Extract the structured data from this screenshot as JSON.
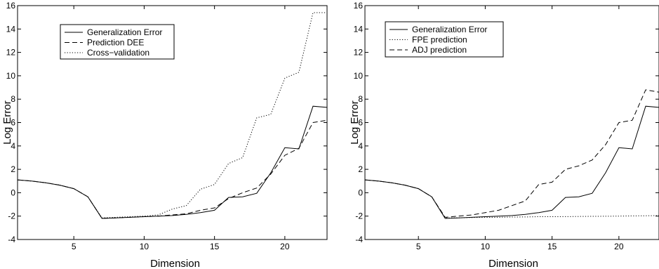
{
  "chart_data": [
    {
      "type": "line",
      "title": "",
      "xlabel": "Dimension",
      "ylabel": "Log Error",
      "xlim": [
        1,
        23
      ],
      "ylim": [
        -4,
        16
      ],
      "xticks": [
        5,
        10,
        15,
        20
      ],
      "yticks": [
        -4,
        -2,
        0,
        2,
        4,
        6,
        8,
        10,
        12,
        14,
        16
      ],
      "grid": false,
      "legend_position": "top-left",
      "x": [
        1,
        2,
        3,
        4,
        5,
        6,
        7,
        8,
        9,
        10,
        11,
        12,
        13,
        14,
        15,
        16,
        17,
        18,
        19,
        20,
        21,
        22,
        23
      ],
      "series": [
        {
          "name": "Generalization Error",
          "style": "solid",
          "values": [
            1.1,
            1.0,
            0.85,
            0.65,
            0.35,
            -0.35,
            -2.2,
            -2.15,
            -2.1,
            -2.05,
            -2.0,
            -1.95,
            -1.85,
            -1.7,
            -1.5,
            -0.4,
            -0.35,
            -0.05,
            1.7,
            3.85,
            3.75,
            7.4,
            7.3
          ]
        },
        {
          "name": "Prediction DEE",
          "style": "dashed",
          "values": [
            1.1,
            1.0,
            0.85,
            0.65,
            0.35,
            -0.35,
            -2.2,
            -2.15,
            -2.1,
            -2.05,
            -2.0,
            -1.9,
            -1.8,
            -1.5,
            -1.3,
            -0.5,
            0.0,
            0.4,
            1.6,
            3.2,
            3.8,
            6.0,
            6.2
          ]
        },
        {
          "name": "Cross−validation",
          "style": "dotted",
          "values": [
            1.1,
            1.0,
            0.85,
            0.65,
            0.35,
            -0.35,
            -2.15,
            -2.1,
            -2.05,
            -2.0,
            -1.9,
            -1.4,
            -1.1,
            0.3,
            0.7,
            2.5,
            3.0,
            6.4,
            6.7,
            9.8,
            10.3,
            15.4,
            15.4
          ]
        }
      ]
    },
    {
      "type": "line",
      "title": "",
      "xlabel": "Dimension",
      "ylabel": "Log Error",
      "xlim": [
        1,
        23
      ],
      "ylim": [
        -4,
        16
      ],
      "xticks": [
        5,
        10,
        15,
        20
      ],
      "yticks": [
        -4,
        -2,
        0,
        2,
        4,
        6,
        8,
        10,
        12,
        14,
        16
      ],
      "grid": false,
      "legend_position": "top-left",
      "x": [
        1,
        2,
        3,
        4,
        5,
        6,
        7,
        8,
        9,
        10,
        11,
        12,
        13,
        14,
        15,
        16,
        17,
        18,
        19,
        20,
        21,
        22,
        23
      ],
      "series": [
        {
          "name": "Generalization Error",
          "style": "solid",
          "values": [
            1.1,
            1.0,
            0.85,
            0.65,
            0.35,
            -0.35,
            -2.2,
            -2.15,
            -2.1,
            -2.05,
            -2.0,
            -1.95,
            -1.85,
            -1.7,
            -1.5,
            -0.4,
            -0.35,
            -0.05,
            1.7,
            3.85,
            3.75,
            7.4,
            7.3
          ]
        },
        {
          "name": "FPE prediction",
          "style": "dotted",
          "values": [
            1.1,
            1.0,
            0.85,
            0.65,
            0.35,
            -0.35,
            -2.15,
            -2.15,
            -2.12,
            -2.1,
            -2.1,
            -2.08,
            -2.07,
            -2.05,
            -2.05,
            -2.04,
            -2.03,
            -2.02,
            -2.01,
            -2.0,
            -1.98,
            -1.97,
            -1.95
          ]
        },
        {
          "name": "ADJ prediction",
          "style": "dashed",
          "values": [
            1.1,
            1.0,
            0.85,
            0.65,
            0.35,
            -0.35,
            -2.1,
            -2.0,
            -1.9,
            -1.7,
            -1.5,
            -1.1,
            -0.7,
            0.7,
            0.9,
            2.0,
            2.3,
            2.8,
            4.1,
            6.0,
            6.2,
            8.8,
            8.6
          ]
        }
      ]
    }
  ]
}
